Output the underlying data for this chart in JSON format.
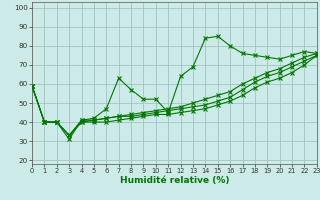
{
  "xlabel": "Humidité relative (%)",
  "xlim": [
    0,
    23
  ],
  "ylim": [
    18,
    103
  ],
  "yticks": [
    20,
    30,
    40,
    50,
    60,
    70,
    80,
    90,
    100
  ],
  "xticks": [
    0,
    1,
    2,
    3,
    4,
    5,
    6,
    7,
    8,
    9,
    10,
    11,
    12,
    13,
    14,
    15,
    16,
    17,
    18,
    19,
    20,
    21,
    22,
    23
  ],
  "background_color": "#cceae8",
  "grid_color": "#99bbbb",
  "line_color": "#007700",
  "series1": [
    59,
    40,
    40,
    31,
    41,
    42,
    47,
    63,
    57,
    52,
    52,
    45,
    64,
    69,
    84,
    85,
    80,
    76,
    75,
    74,
    73,
    75,
    77,
    76
  ],
  "series2": [
    59,
    40,
    40,
    33,
    41,
    41,
    42,
    43,
    44,
    45,
    46,
    47,
    48,
    50,
    52,
    54,
    56,
    60,
    63,
    66,
    68,
    71,
    74,
    76
  ],
  "series3": [
    59,
    40,
    40,
    33,
    40,
    41,
    42,
    43,
    43,
    44,
    45,
    46,
    47,
    48,
    49,
    51,
    53,
    57,
    61,
    64,
    66,
    69,
    72,
    75
  ],
  "series4": [
    59,
    40,
    40,
    33,
    40,
    40,
    40,
    41,
    42,
    43,
    44,
    44,
    45,
    46,
    47,
    49,
    51,
    54,
    58,
    61,
    63,
    66,
    70,
    75
  ]
}
